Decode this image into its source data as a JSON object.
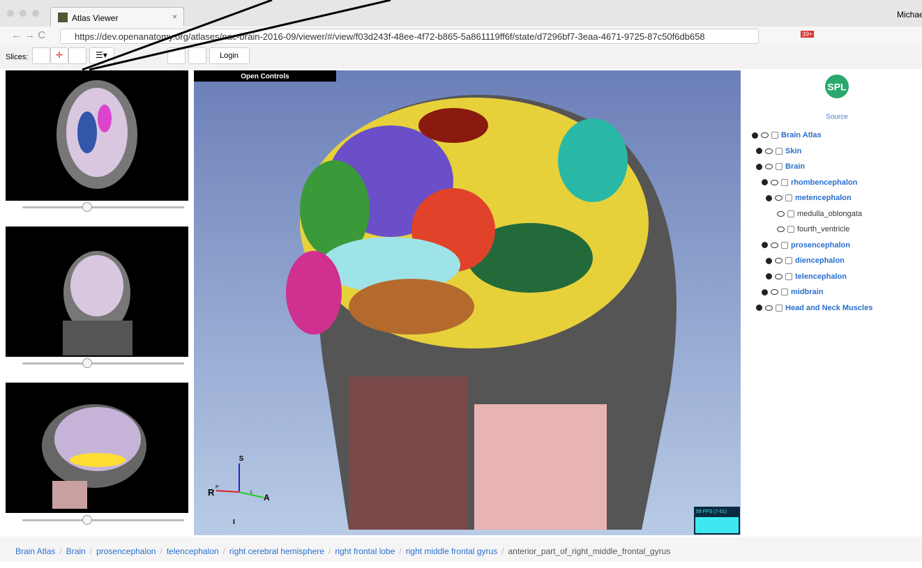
{
  "browser": {
    "tab_title": "Atlas Viewer",
    "user": "Michael",
    "url": "https://dev.openanatomy.org/atlases/nac-brain-2016-09/viewer/#/view/f03d243f-48ee-4f72-b865-5a861119ff6f/state/d7296bf7-3eaa-4671-9725-87c50f6db658",
    "badge": "39+"
  },
  "toolbar": {
    "slices_label": "Slices:",
    "login": "Login"
  },
  "viewer": {
    "open_controls": "Open Controls",
    "fps": "59 FPS (7-61)",
    "axes": {
      "s": "S",
      "r": "R",
      "p": "P",
      "l": "L",
      "a": "A",
      "i": "I"
    }
  },
  "sidebar": {
    "logo": "SPL",
    "source": "Source",
    "tree": [
      {
        "label": "Brain Atlas",
        "level": 0,
        "state": "open"
      },
      {
        "label": "Skin",
        "level": 1,
        "state": "closed"
      },
      {
        "label": "Brain",
        "level": 1,
        "state": "open"
      },
      {
        "label": "rhombencephalon",
        "level": 2,
        "state": "open"
      },
      {
        "label": "metencephalon",
        "level": 3,
        "state": "closed"
      },
      {
        "label": "medulla_oblongata",
        "level": 4,
        "state": "leaf"
      },
      {
        "label": "fourth_ventricle",
        "level": 4,
        "state": "leaf"
      },
      {
        "label": "prosencephalon",
        "level": 2,
        "state": "open"
      },
      {
        "label": "diencephalon",
        "level": 3,
        "state": "closed"
      },
      {
        "label": "telencephalon",
        "level": 3,
        "state": "closed"
      },
      {
        "label": "midbrain",
        "level": 2,
        "state": "closed"
      },
      {
        "label": "Head and Neck Muscles",
        "level": 1,
        "state": "closed"
      }
    ]
  },
  "breadcrumb": {
    "separator": "/",
    "items": [
      "Brain Atlas",
      "Brain",
      "prosencephalon",
      "telencephalon",
      "right cerebral hemisphere",
      "right frontal lobe",
      "right middle frontal gyrus",
      "anterior_part_of_right_middle_frontal_gyrus"
    ]
  }
}
